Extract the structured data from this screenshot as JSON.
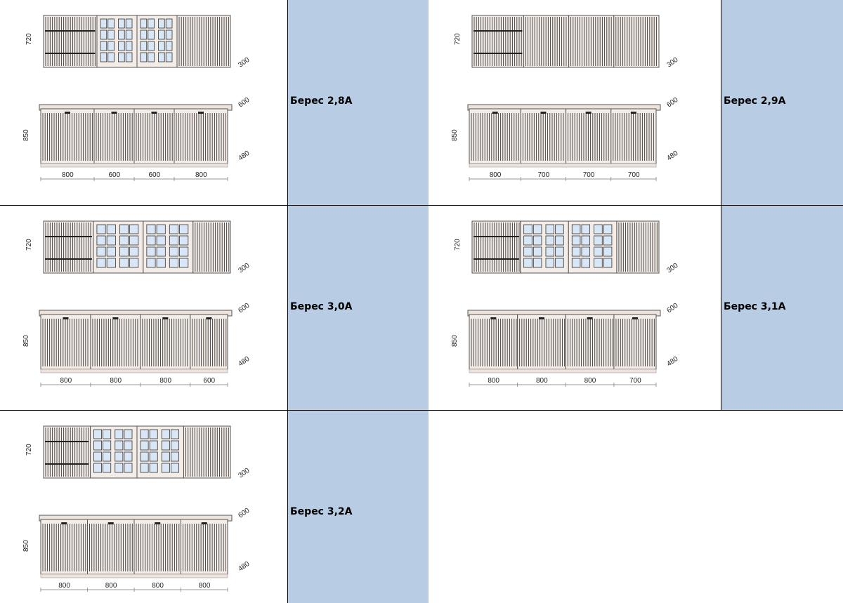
{
  "colors": {
    "label_bg": "#b8cce4",
    "cabinet_fill": "#f3ece7",
    "stripe": "#3a3a3a",
    "glass": "#d9e6f5"
  },
  "cells": [
    {
      "label": "Берес 2,8А",
      "upper_type": [
        "rack",
        "glass",
        "glass",
        "plain"
      ],
      "dims": {
        "upper_h": "720",
        "upper_d": "300",
        "lower_h": "850",
        "lower_d_top": "600",
        "lower_d_bot": "480",
        "widths": [
          "800",
          "600",
          "600",
          "800"
        ]
      }
    },
    {
      "label": "Берес 2,9А",
      "upper_type": [
        "rack",
        "plain",
        "plain",
        "plain"
      ],
      "dims": {
        "upper_h": "720",
        "upper_d": "300",
        "lower_h": "850",
        "lower_d_top": "600",
        "lower_d_bot": "480",
        "widths": [
          "800",
          "700",
          "700",
          "700"
        ]
      }
    },
    {
      "label": "Берес 3,0А",
      "upper_type": [
        "rack",
        "glass",
        "glass",
        "plain"
      ],
      "dims": {
        "upper_h": "720",
        "upper_d": "300",
        "lower_h": "850",
        "lower_d_top": "600",
        "lower_d_bot": "480",
        "widths": [
          "800",
          "800",
          "800",
          "600"
        ]
      }
    },
    {
      "label": "Берес 3,1А",
      "upper_type": [
        "rack",
        "glass",
        "glass",
        "plain"
      ],
      "dims": {
        "upper_h": "720",
        "upper_d": "300",
        "lower_h": "850",
        "lower_d_top": "600",
        "lower_d_bot": "480",
        "widths": [
          "800",
          "800",
          "800",
          "700"
        ]
      }
    },
    {
      "label": "Берес 3,2А",
      "upper_type": [
        "rack",
        "glass",
        "glass",
        "plain"
      ],
      "dims": {
        "upper_h": "720",
        "upper_d": "300",
        "lower_h": "850",
        "lower_d_top": "600",
        "lower_d_bot": "480",
        "widths": [
          "800",
          "800",
          "800",
          "800"
        ]
      }
    }
  ]
}
